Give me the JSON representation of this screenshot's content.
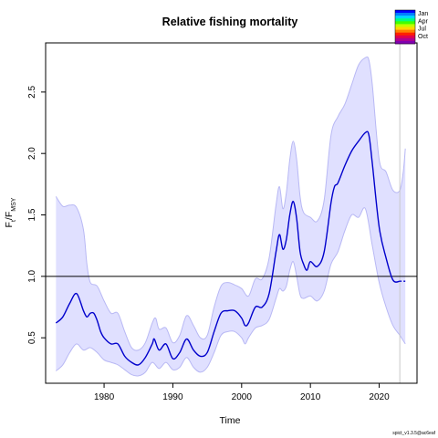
{
  "chart_data": {
    "type": "line",
    "title": "Relative fishing mortality",
    "xlabel": "Time",
    "ylabel": {
      "main": "F",
      "sub": "t",
      "div": "/F",
      "sub2": "MSY"
    },
    "xlim": [
      1971.5,
      2025.5
    ],
    "ylim": [
      0.13,
      2.9
    ],
    "x_ticks": [
      1980,
      1990,
      2000,
      2010,
      2020
    ],
    "y_ticks": [
      0.5,
      1.0,
      1.5,
      2.0,
      2.5
    ],
    "x_tick_labels": [
      "1980",
      "1990",
      "2000",
      "2010",
      "2020"
    ],
    "y_tick_labels": [
      "0.5",
      "1.0",
      "1.5",
      "2.0",
      "2.5"
    ],
    "reference_line": {
      "y": 1.0,
      "color": "#000000"
    },
    "vertical_line": {
      "x": 2023,
      "color": "#c8c8c8"
    },
    "colors": {
      "estimate": "#0000cc",
      "band_fill": "#e0e0ff",
      "band_edge": "#b8b8f4"
    },
    "series": [
      {
        "role": "estimate",
        "x": [
          1973.0,
          1974.0,
          1975.0,
          1976.0,
          1977.0,
          1977.5,
          1978.0,
          1978.5,
          1979.0,
          1979.5,
          1980.0,
          1981.0,
          1982.0,
          1983.0,
          1984.0,
          1985.0,
          1986.0,
          1987.0,
          1987.3,
          1988.0,
          1989.0,
          1990.0,
          1991.0,
          1992.0,
          1993.0,
          1994.0,
          1995.0,
          1996.0,
          1997.0,
          1998.0,
          1999.0,
          2000.0,
          2000.5,
          2001.0,
          2002.0,
          2003.0,
          2004.0,
          2005.0,
          2005.5,
          2006.0,
          2006.5,
          2007.0,
          2007.5,
          2008.0,
          2008.5,
          2009.0,
          2009.5,
          2010.0,
          2011.0,
          2012.0,
          2013.0,
          2013.5,
          2014.0,
          2015.0,
          2016.0,
          2017.0,
          2018.0,
          2018.5,
          2019.0,
          2020.0,
          2021.0,
          2022.0,
          2023.0
        ],
        "y": [
          0.62,
          0.67,
          0.78,
          0.86,
          0.72,
          0.67,
          0.7,
          0.7,
          0.64,
          0.55,
          0.5,
          0.45,
          0.45,
          0.35,
          0.3,
          0.28,
          0.34,
          0.45,
          0.49,
          0.4,
          0.45,
          0.33,
          0.38,
          0.49,
          0.4,
          0.35,
          0.38,
          0.55,
          0.7,
          0.72,
          0.72,
          0.66,
          0.6,
          0.62,
          0.75,
          0.75,
          0.86,
          1.2,
          1.34,
          1.22,
          1.3,
          1.5,
          1.61,
          1.47,
          1.2,
          1.1,
          1.05,
          1.12,
          1.08,
          1.2,
          1.6,
          1.73,
          1.76,
          1.9,
          2.02,
          2.1,
          2.17,
          2.15,
          1.92,
          1.4,
          1.15,
          0.97,
          0.96
        ]
      },
      {
        "role": "upper",
        "x": [
          1973.0,
          1974.0,
          1975.0,
          1976.0,
          1977.0,
          1977.5,
          1978.0,
          1979.0,
          1980.0,
          1981.0,
          1982.0,
          1983.0,
          1984.0,
          1985.0,
          1986.0,
          1987.0,
          1987.5,
          1988.0,
          1989.0,
          1990.0,
          1991.0,
          1992.0,
          1993.0,
          1994.0,
          1995.0,
          1996.0,
          1997.0,
          1998.0,
          1999.0,
          2000.0,
          2001.0,
          2002.0,
          2003.0,
          2004.0,
          2005.0,
          2005.5,
          2006.0,
          2006.5,
          2007.0,
          2007.5,
          2008.0,
          2008.5,
          2009.0,
          2010.0,
          2011.0,
          2012.0,
          2013.0,
          2014.0,
          2015.0,
          2016.0,
          2017.0,
          2018.0,
          2018.5,
          2019.0,
          2020.0,
          2021.0,
          2022.0,
          2023.0,
          2023.5,
          2023.8
        ],
        "y": [
          1.65,
          1.57,
          1.58,
          1.56,
          1.38,
          1.1,
          0.95,
          0.92,
          0.8,
          0.7,
          0.7,
          0.55,
          0.42,
          0.4,
          0.46,
          0.62,
          0.66,
          0.57,
          0.58,
          0.46,
          0.52,
          0.68,
          0.6,
          0.5,
          0.52,
          0.75,
          0.92,
          0.95,
          0.93,
          0.9,
          0.84,
          0.98,
          0.98,
          1.15,
          1.58,
          1.73,
          1.55,
          1.68,
          1.95,
          2.1,
          1.95,
          1.65,
          1.52,
          1.48,
          1.45,
          1.62,
          2.15,
          2.3,
          2.4,
          2.56,
          2.72,
          2.78,
          2.76,
          2.56,
          1.95,
          1.85,
          1.7,
          1.7,
          1.85,
          2.04
        ]
      },
      {
        "role": "lower",
        "x": [
          1973.0,
          1974.0,
          1975.0,
          1976.0,
          1977.0,
          1978.0,
          1979.0,
          1980.0,
          1981.0,
          1982.0,
          1983.0,
          1984.0,
          1985.0,
          1986.0,
          1987.0,
          1988.0,
          1989.0,
          1990.0,
          1991.0,
          1992.0,
          1993.0,
          1994.0,
          1995.0,
          1996.0,
          1997.0,
          1998.0,
          1999.0,
          2000.0,
          2000.5,
          2001.0,
          2002.0,
          2003.0,
          2004.0,
          2005.0,
          2005.5,
          2006.0,
          2006.5,
          2007.0,
          2007.5,
          2008.0,
          2008.5,
          2009.0,
          2010.0,
          2011.0,
          2012.0,
          2013.0,
          2014.0,
          2015.0,
          2016.0,
          2017.0,
          2018.0,
          2019.0,
          2020.0,
          2021.0,
          2022.0,
          2023.0,
          2023.8
        ],
        "y": [
          0.23,
          0.28,
          0.38,
          0.45,
          0.4,
          0.42,
          0.38,
          0.32,
          0.3,
          0.28,
          0.24,
          0.2,
          0.19,
          0.22,
          0.3,
          0.25,
          0.3,
          0.24,
          0.26,
          0.34,
          0.26,
          0.22,
          0.26,
          0.38,
          0.52,
          0.55,
          0.55,
          0.5,
          0.45,
          0.5,
          0.58,
          0.6,
          0.65,
          0.82,
          0.9,
          0.88,
          0.92,
          1.05,
          1.12,
          1.0,
          0.85,
          0.82,
          0.84,
          0.8,
          0.88,
          1.1,
          1.2,
          1.37,
          1.5,
          1.48,
          1.55,
          1.25,
          0.95,
          0.75,
          0.6,
          0.52,
          0.45
        ]
      },
      {
        "role": "projection",
        "x": [
          2023.0,
          2023.8
        ],
        "y": [
          0.96,
          0.96
        ]
      }
    ],
    "legend": {
      "placement": "top-right",
      "labels": [
        "Jan",
        "Apr",
        "Jul",
        "Oct"
      ],
      "colors": [
        "#0000ff",
        "#0080ff",
        "#00d8ff",
        "#00ff80",
        "#40ff00",
        "#c0ff00",
        "#ffd800",
        "#ff8000",
        "#ff2000",
        "#e00050",
        "#b00090",
        "#8000b0"
      ]
    },
    "version_text": "spict_v1.3.5@ac6eaf"
  }
}
